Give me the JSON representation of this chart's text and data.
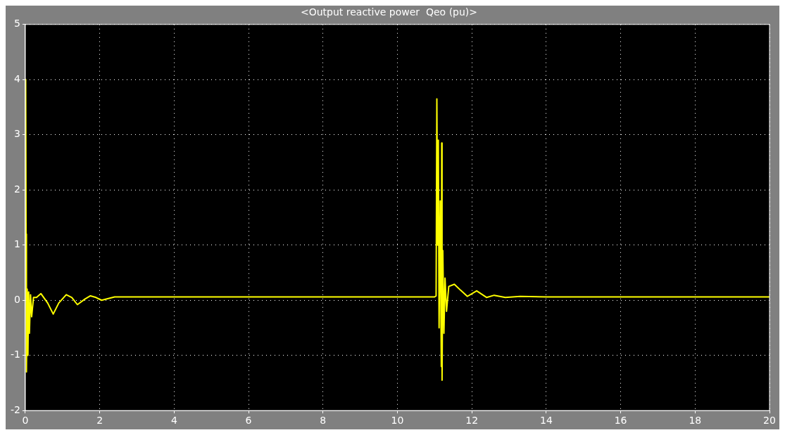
{
  "chart_data": {
    "type": "line",
    "title": "<Output reactive power  Qeo (pu)>",
    "x": [
      0,
      0.01,
      0.02,
      0.03,
      0.05,
      0.07,
      0.09,
      0.11,
      0.14,
      0.17,
      0.22,
      0.3,
      0.42,
      0.6,
      0.75,
      0.9,
      1.1,
      1.25,
      1.4,
      1.6,
      1.75,
      1.9,
      2.05,
      2.4,
      3,
      4,
      5,
      6,
      7,
      8,
      9,
      10,
      11,
      11.04,
      11.06,
      11.08,
      11.1,
      11.12,
      11.15,
      11.18,
      11.19,
      11.2,
      11.22,
      11.25,
      11.28,
      11.32,
      11.38,
      11.53,
      11.7,
      11.88,
      12.13,
      12.4,
      12.6,
      12.9,
      13.3,
      14,
      16,
      18,
      20
    ],
    "values": [
      4,
      4,
      1.2,
      -1.3,
      0.2,
      -1,
      0.15,
      -0.6,
      0.1,
      -0.3,
      0.05,
      0.05,
      0.12,
      -0.05,
      -0.25,
      -0.05,
      0.1,
      0.05,
      -0.08,
      0.02,
      0.08,
      0.05,
      0,
      0.06,
      0.06,
      0.06,
      0.06,
      0.06,
      0.06,
      0.06,
      0.06,
      0.06,
      0.06,
      0.08,
      3.65,
      1,
      2.9,
      -0.5,
      1.8,
      -1.2,
      2.85,
      -1.45,
      0.9,
      -0.6,
      0.4,
      -0.2,
      0.25,
      0.29,
      0.18,
      0.07,
      0.17,
      0.05,
      0.09,
      0.05,
      0.07,
      0.06,
      0.06,
      0.06,
      0.06
    ],
    "color": "#ffff00",
    "marker": "none",
    "line_style": "solid",
    "xlim": [
      0,
      20
    ],
    "ylim": [
      -2,
      5
    ],
    "xticks": [
      0,
      2,
      4,
      6,
      8,
      10,
      12,
      14,
      16,
      18,
      20
    ],
    "yticks": [
      -2,
      -1,
      0,
      1,
      2,
      3,
      4,
      5
    ],
    "grid": true
  }
}
